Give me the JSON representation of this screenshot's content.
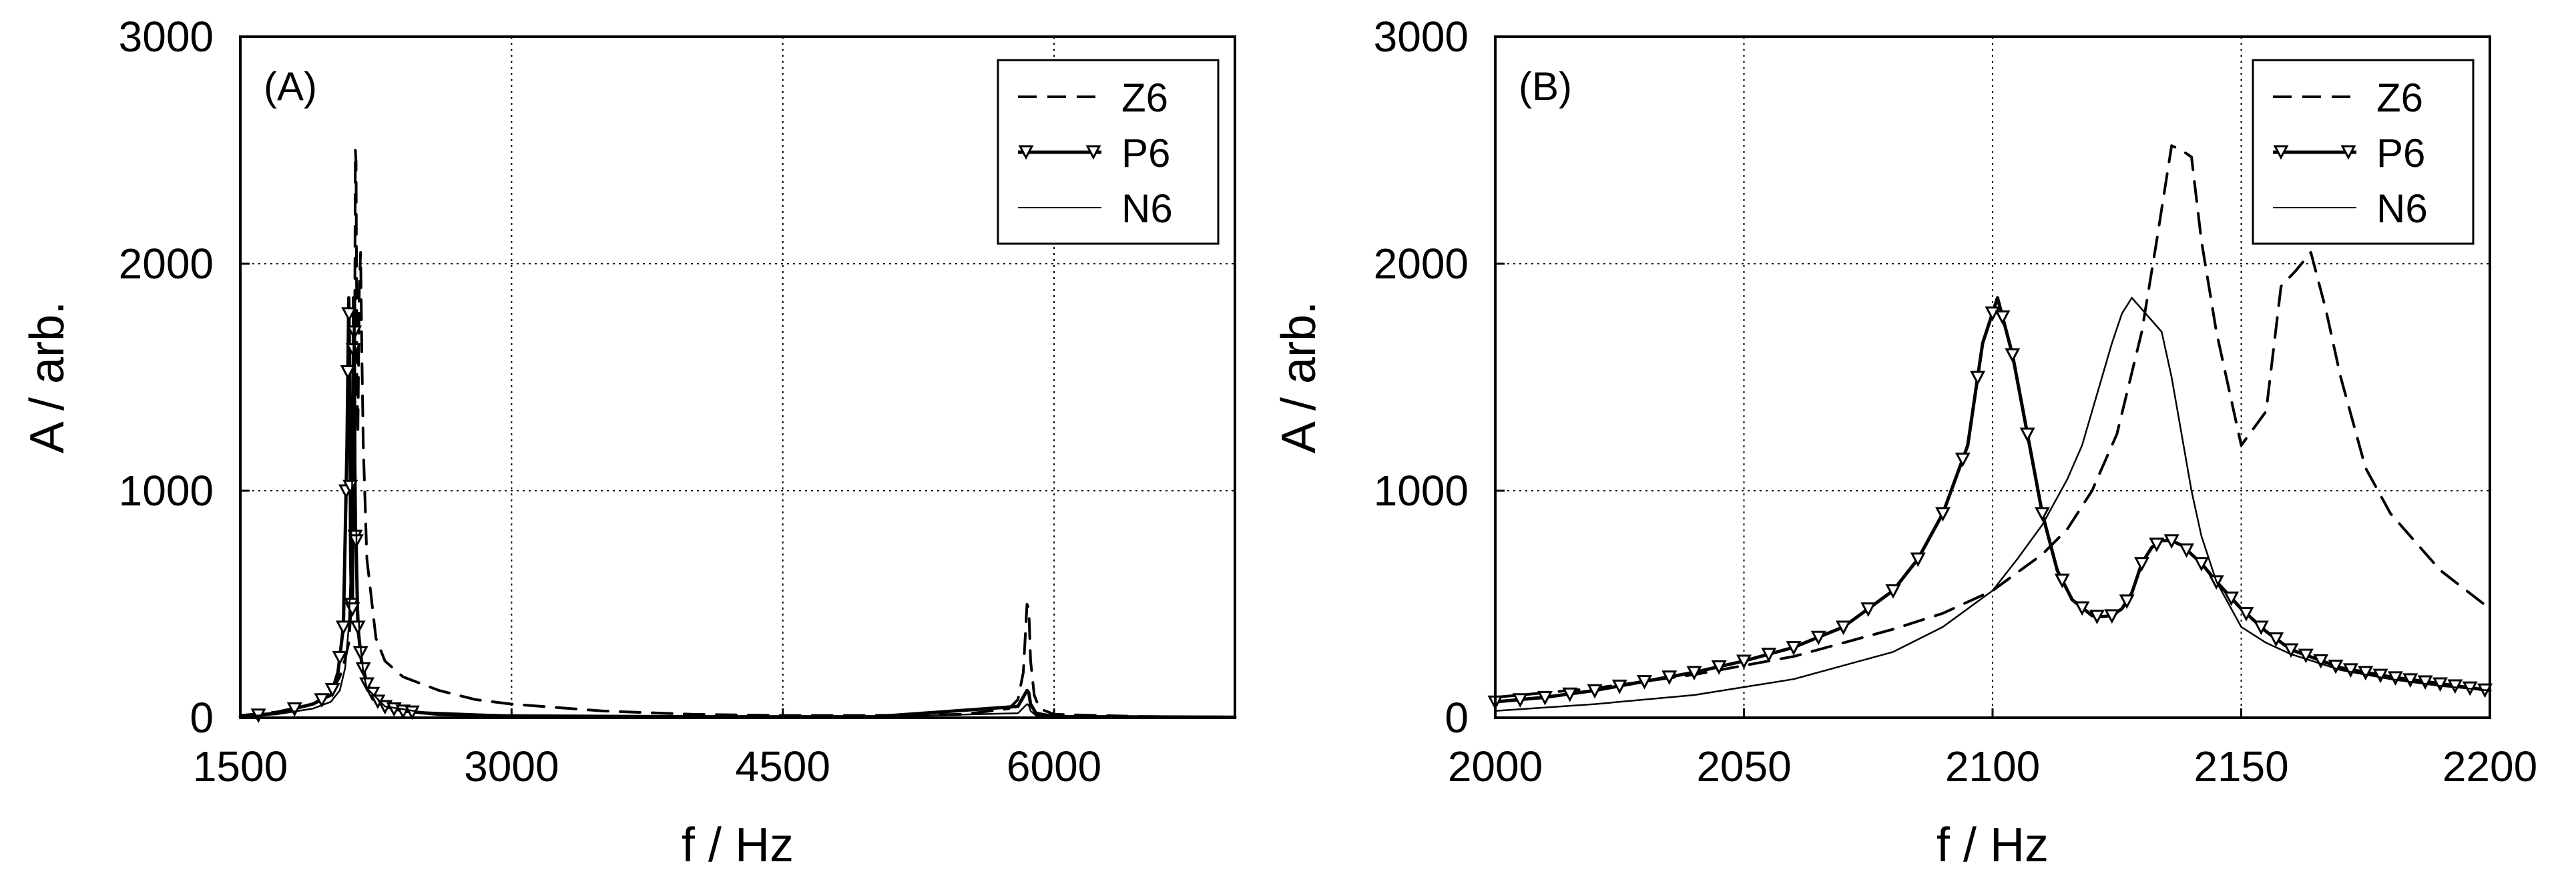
{
  "chart_data": [
    {
      "id": "A",
      "type": "line",
      "panel_label": "(A)",
      "xlabel": "f / Hz",
      "ylabel": "A / arb.",
      "xlim": [
        1500,
        7000
      ],
      "ylim": [
        0,
        3000
      ],
      "xticks": [
        1500,
        3000,
        4500,
        6000
      ],
      "xtick_labels": [
        "1500",
        "3000",
        "4500",
        "6000"
      ],
      "yticks": [
        0,
        1000,
        2000,
        3000
      ],
      "ytick_labels": [
        "0",
        "1000",
        "2000",
        "3000"
      ],
      "grid": true,
      "legend_position": "top-right",
      "series": [
        {
          "name": "Z6",
          "style": "dash",
          "x": [
            1500,
            1700,
            1900,
            2000,
            2050,
            2080,
            2100,
            2110,
            2120,
            2130,
            2136,
            2140,
            2145,
            2150,
            2158,
            2165,
            2172,
            2180,
            2200,
            2250,
            2300,
            2400,
            2600,
            2800,
            3000,
            3500,
            4000,
            4500,
            5000,
            5500,
            5750,
            5800,
            5830,
            5850,
            5860,
            5870,
            5890,
            5920,
            6000,
            6500,
            7000
          ],
          "y": [
            10,
            25,
            60,
            110,
            180,
            260,
            330,
            450,
            650,
            1100,
            2500,
            2450,
            1500,
            1250,
            1900,
            2050,
            1600,
            1200,
            700,
            350,
            250,
            180,
            120,
            80,
            60,
            30,
            15,
            10,
            10,
            15,
            40,
            80,
            200,
            500,
            480,
            250,
            100,
            40,
            15,
            5,
            3
          ]
        },
        {
          "name": "P6",
          "style": "solid-marker",
          "x": [
            1500,
            1700,
            1900,
            2000,
            2040,
            2070,
            2090,
            2100,
            2105,
            2110,
            2115,
            2120,
            2126,
            2130,
            2135,
            2140,
            2150,
            2170,
            2200,
            2250,
            2300,
            2400,
            2600,
            3000,
            4000,
            5000,
            5800,
            5850,
            5860,
            5870,
            5900,
            6000,
            7000
          ],
          "y": [
            5,
            20,
            60,
            100,
            200,
            400,
            1200,
            1850,
            1500,
            700,
            500,
            480,
            1850,
            1700,
            800,
            780,
            400,
            250,
            150,
            80,
            50,
            30,
            15,
            8,
            4,
            4,
            50,
            120,
            110,
            60,
            20,
            5,
            2
          ],
          "marker_x": [
            1600,
            1800,
            1950,
            2010,
            2050,
            2070,
            2085,
            2095,
            2101,
            2108,
            2115,
            2120,
            2125,
            2130,
            2135,
            2140,
            2150,
            2165,
            2180,
            2200,
            2230,
            2260,
            2300,
            2350,
            2400,
            2450
          ]
        },
        {
          "name": "N6",
          "style": "thin-solid",
          "x": [
            1500,
            1700,
            1900,
            2000,
            2050,
            2080,
            2100,
            2110,
            2118,
            2124,
            2128,
            2133,
            2138,
            2145,
            2160,
            2180,
            2200,
            2300,
            2500,
            3000,
            4000,
            5000,
            5800,
            5850,
            5860,
            5870,
            5900,
            6000,
            7000
          ],
          "y": [
            5,
            15,
            40,
            70,
            120,
            220,
            400,
            650,
            1000,
            1500,
            1850,
            1750,
            1100,
            600,
            350,
            200,
            130,
            50,
            25,
            10,
            5,
            4,
            20,
            60,
            55,
            30,
            10,
            4,
            2
          ]
        }
      ]
    },
    {
      "id": "B",
      "type": "line",
      "panel_label": "(B)",
      "xlabel": "f / Hz",
      "ylabel": "A / arb.",
      "xlim": [
        2000,
        2200
      ],
      "ylim": [
        0,
        3000
      ],
      "xticks": [
        2000,
        2050,
        2100,
        2150,
        2200
      ],
      "xtick_labels": [
        "2000",
        "2050",
        "2100",
        "2150",
        "2200"
      ],
      "yticks": [
        0,
        1000,
        2000,
        3000
      ],
      "ytick_labels": [
        "0",
        "1000",
        "2000",
        "3000"
      ],
      "grid": true,
      "legend_position": "top-right",
      "series": [
        {
          "name": "Z6",
          "style": "dash",
          "x": [
            2000,
            2020,
            2040,
            2060,
            2070,
            2080,
            2090,
            2100,
            2110,
            2115,
            2120,
            2125,
            2130,
            2133,
            2136,
            2138,
            2140,
            2142,
            2145,
            2148,
            2150,
            2155,
            2158,
            2161,
            2164,
            2167,
            2170,
            2175,
            2180,
            2190,
            2200
          ],
          "y": [
            90,
            130,
            190,
            270,
            330,
            390,
            460,
            560,
            720,
            830,
            1000,
            1250,
            1700,
            2100,
            2520,
            2500,
            2470,
            2100,
            1700,
            1400,
            1200,
            1350,
            1900,
            1970,
            2050,
            1800,
            1500,
            1100,
            900,
            650,
            480
          ]
        },
        {
          "name": "P6",
          "style": "solid-marker",
          "x": [
            2000,
            2010,
            2020,
            2030,
            2040,
            2050,
            2060,
            2070,
            2080,
            2085,
            2090,
            2095,
            2098,
            2101,
            2104,
            2107,
            2110,
            2113,
            2116,
            2120,
            2122,
            2124,
            2126,
            2128,
            2130,
            2132,
            2134,
            2136,
            2138,
            2140,
            2142,
            2145,
            2150,
            2155,
            2160,
            2170,
            2180,
            2190,
            2200
          ],
          "y": [
            70,
            90,
            120,
            160,
            200,
            250,
            310,
            400,
            560,
            700,
            900,
            1200,
            1650,
            1850,
            1600,
            1250,
            900,
            650,
            520,
            450,
            445,
            450,
            480,
            550,
            680,
            750,
            780,
            780,
            760,
            720,
            680,
            600,
            480,
            380,
            300,
            220,
            180,
            150,
            120
          ],
          "marker_x": [
            2000,
            2005,
            2010,
            2015,
            2020,
            2025,
            2030,
            2035,
            2040,
            2045,
            2050,
            2055,
            2060,
            2065,
            2070,
            2075,
            2080,
            2085,
            2090,
            2094,
            2097,
            2100,
            2102,
            2104,
            2107,
            2110,
            2114,
            2118,
            2121,
            2124,
            2127,
            2130,
            2133,
            2136,
            2139,
            2142,
            2145,
            2148,
            2151,
            2154,
            2157,
            2160,
            2163,
            2166,
            2169,
            2172,
            2175,
            2178,
            2181,
            2184,
            2187,
            2190,
            2193,
            2196,
            2199
          ]
        },
        {
          "name": "N6",
          "style": "thin-solid",
          "x": [
            2000,
            2020,
            2040,
            2060,
            2080,
            2090,
            2100,
            2105,
            2110,
            2115,
            2118,
            2120,
            2122,
            2124,
            2126,
            2128,
            2130,
            2132,
            2134,
            2136,
            2138,
            2140,
            2142,
            2145,
            2150,
            2155,
            2160,
            2170,
            2180,
            2190,
            2200
          ],
          "y": [
            30,
            60,
            100,
            170,
            290,
            400,
            560,
            700,
            850,
            1050,
            1200,
            1350,
            1500,
            1650,
            1780,
            1850,
            1800,
            1750,
            1700,
            1500,
            1250,
            1000,
            800,
            600,
            400,
            330,
            280,
            210,
            170,
            140,
            120
          ]
        }
      ]
    }
  ]
}
